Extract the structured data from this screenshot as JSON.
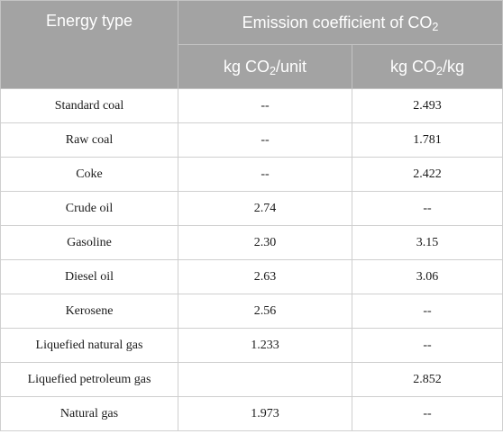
{
  "headers": {
    "energy_type": "Energy type",
    "emission_group_prefix": "Emission coefficient of CO",
    "emission_group_sub": "2",
    "col_unit": {
      "prefix": "kg CO",
      "sub": "2",
      "suffix": "/unit"
    },
    "col_kg": {
      "prefix": "kg CO",
      "sub": "2",
      "suffix": "/kg"
    }
  },
  "rows": [
    {
      "type": "Standard coal",
      "per_unit": "--",
      "per_kg": "2.493"
    },
    {
      "type": "Raw coal",
      "per_unit": "--",
      "per_kg": "1.781"
    },
    {
      "type": "Coke",
      "per_unit": "--",
      "per_kg": "2.422"
    },
    {
      "type": "Crude oil",
      "per_unit": "2.74",
      "per_kg": "--"
    },
    {
      "type": "Gasoline",
      "per_unit": "2.30",
      "per_kg": "3.15"
    },
    {
      "type": "Diesel oil",
      "per_unit": "2.63",
      "per_kg": "3.06"
    },
    {
      "type": "Kerosene",
      "per_unit": "2.56",
      "per_kg": "--"
    },
    {
      "type": "Liquefied natural gas",
      "per_unit": "1.233",
      "per_kg": "--"
    },
    {
      "type": "Liquefied petroleum gas",
      "per_unit": "",
      "per_kg": "2.852"
    },
    {
      "type": "Natural gas",
      "per_unit": "1.973",
      "per_kg": "--"
    }
  ]
}
